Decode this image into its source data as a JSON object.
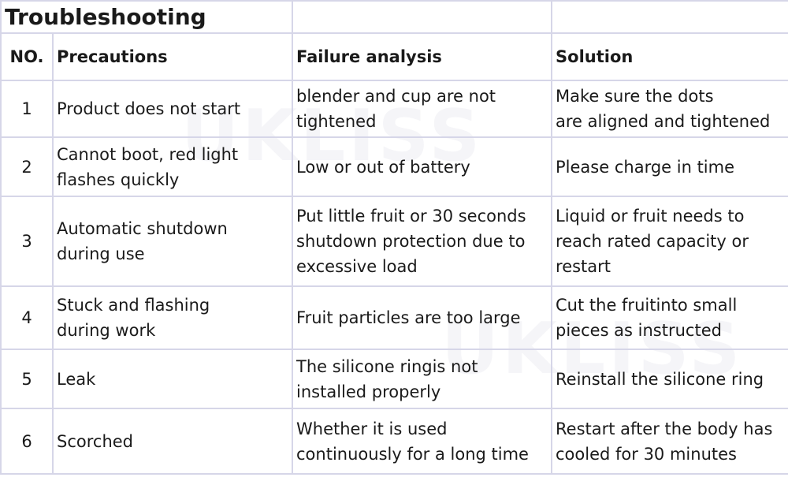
{
  "title": "Troubleshooting",
  "headers": [
    "NO.",
    "Precautions",
    "Failure analysis",
    "Solution"
  ],
  "rows": [
    {
      "no": "1",
      "precaution": "Product does not start",
      "analysis": [
        "blender and cup are not",
        "tightened"
      ],
      "solution": [
        "Make sure the dots",
        "are aligned and tightened"
      ]
    },
    {
      "no": "2",
      "precaution": [
        "Cannot boot, red light",
        "flashes quickly"
      ],
      "analysis": "Low or out of battery",
      "solution": "Please charge in time"
    },
    {
      "no": "3",
      "precaution": [
        "Automatic shutdown",
        "during use"
      ],
      "analysis": [
        "Put little fruit or 30 seconds",
        "shutdown protection due to",
        "excessive load"
      ],
      "solution": [
        "Liquid or fruit needs to",
        "reach rated capacity or",
        "restart"
      ]
    },
    {
      "no": "4",
      "precaution": [
        "Stuck and flashing",
        "during work"
      ],
      "analysis": "Fruit particles are too large",
      "solution": [
        "Cut the fruitinto small",
        "pieces as instructed"
      ]
    },
    {
      "no": "5",
      "precaution": "Leak",
      "analysis": [
        "The silicone ringis not",
        "installed properly"
      ],
      "solution": "Reinstall the silicone ring"
    },
    {
      "no": "6",
      "precaution": "Scorched",
      "analysis": [
        "Whether it is used",
        "continuously for a long time"
      ],
      "solution": [
        "Restart after the body has",
        "cooled for 30 minutes"
      ]
    }
  ],
  "watermark": "UKLISS"
}
